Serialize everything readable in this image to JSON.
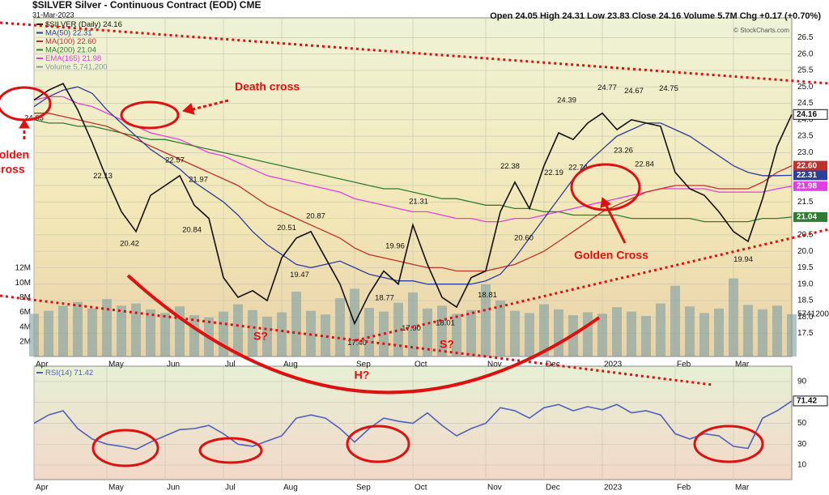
{
  "chart_data": [
    {
      "type": "line",
      "title": "$SILVER Silver - Continuous Contract (EOD) CME",
      "date": "31-Mar-2023",
      "header": "Open 24.05  High 24.31  Low 23.83  Close 24.16  Volume 5.7M  Chg +0.17 (+0.70%)",
      "credit": "© StockCharts.com",
      "categories": [
        "Apr",
        null,
        null,
        null,
        null,
        "May",
        null,
        null,
        null,
        "Jun",
        null,
        null,
        null,
        "Jul",
        null,
        null,
        null,
        "Aug",
        null,
        null,
        null,
        null,
        "Sep",
        null,
        null,
        null,
        "Oct",
        null,
        null,
        null,
        null,
        "Nov",
        null,
        null,
        null,
        "Dec",
        null,
        null,
        null,
        "2023",
        null,
        null,
        null,
        null,
        "Feb",
        null,
        null,
        null,
        "Mar",
        null,
        null,
        null,
        null
      ],
      "ylim": [
        16.8,
        27.1
      ],
      "yticks": [
        17.5,
        {
          "value": 18,
          "label": "18.0"
        },
        18.5,
        {
          "value": 19,
          "label": "19.0"
        },
        19.5,
        {
          "value": 20,
          "label": "20.0"
        },
        20.5,
        {
          "value": 21,
          "label": "21.0"
        },
        21.5,
        {
          "value": 22,
          "label": "22.0"
        },
        22.5,
        {
          "value": 23,
          "label": "23.0"
        },
        23.5,
        {
          "value": 24,
          "label": "24.0"
        },
        24.5,
        {
          "value": 25,
          "label": "25.0"
        },
        25.5,
        {
          "value": 26,
          "label": "26.0"
        },
        26.5
      ],
      "grid": true,
      "series": [
        {
          "name": "$SILVER (Daily)",
          "color": "#111111",
          "last_label": "24.16",
          "values": [
            24.6,
            24.9,
            25.1,
            24.3,
            23.3,
            22.2,
            21.2,
            20.6,
            21.7,
            22.0,
            22.3,
            21.4,
            21.0,
            19.2,
            18.6,
            18.8,
            18.5,
            19.8,
            20.4,
            20.6,
            19.8,
            19.0,
            17.8,
            18.7,
            19.4,
            19.0,
            20.8,
            19.6,
            18.6,
            18.3,
            19.2,
            19.4,
            21.2,
            22.1,
            21.3,
            22.6,
            23.6,
            23.4,
            23.9,
            24.2,
            23.7,
            24.0,
            23.9,
            23.8,
            22.4,
            21.9,
            21.7,
            21.2,
            20.6,
            20.3,
            21.6,
            23.2,
            24.16
          ]
        },
        {
          "name": "MA(50)",
          "color": "#2c3e9e",
          "last_label": "22.31",
          "values": [
            24.4,
            24.7,
            24.9,
            25.0,
            24.8,
            24.3,
            23.9,
            23.5,
            23.1,
            22.8,
            22.5,
            22.1,
            21.8,
            21.5,
            21.1,
            20.6,
            20.2,
            19.9,
            19.6,
            19.5,
            19.6,
            19.7,
            19.5,
            19.3,
            19.2,
            19.1,
            19.1,
            19.0,
            19.0,
            19.0,
            19.0,
            19.1,
            19.3,
            19.8,
            20.4,
            21.0,
            21.6,
            22.2,
            22.7,
            23.1,
            23.5,
            23.7,
            23.9,
            23.9,
            23.7,
            23.5,
            23.2,
            22.9,
            22.6,
            22.4,
            22.3,
            22.3,
            22.31
          ]
        },
        {
          "name": "MA(100)",
          "color": "#c0302a",
          "last_label": "22.60",
          "values": [
            24.2,
            24.2,
            24.1,
            24.0,
            23.9,
            23.8,
            23.6,
            23.4,
            23.2,
            23.0,
            22.8,
            22.6,
            22.4,
            22.2,
            22.0,
            21.7,
            21.4,
            21.2,
            21.0,
            20.8,
            20.6,
            20.4,
            20.1,
            19.9,
            19.8,
            19.7,
            19.6,
            19.5,
            19.5,
            19.4,
            19.4,
            19.4,
            19.5,
            19.6,
            19.8,
            20.0,
            20.3,
            20.6,
            20.9,
            21.2,
            21.4,
            21.6,
            21.8,
            21.9,
            22.0,
            22.0,
            22.0,
            21.9,
            21.9,
            21.9,
            22.1,
            22.4,
            22.6
          ]
        },
        {
          "name": "MA(200)",
          "color": "#2e7d32",
          "last_label": "21.04",
          "values": [
            24.0,
            23.9,
            23.9,
            23.8,
            23.8,
            23.7,
            23.6,
            23.5,
            23.4,
            23.4,
            23.3,
            23.2,
            23.1,
            23.0,
            22.9,
            22.8,
            22.7,
            22.6,
            22.5,
            22.4,
            22.3,
            22.2,
            22.1,
            22.0,
            21.9,
            21.9,
            21.8,
            21.7,
            21.6,
            21.6,
            21.5,
            21.4,
            21.4,
            21.3,
            21.3,
            21.2,
            21.2,
            21.1,
            21.1,
            21.1,
            21.1,
            21.0,
            21.0,
            21.0,
            21.0,
            21.0,
            20.9,
            20.9,
            20.9,
            20.9,
            21.0,
            21.0,
            21.04
          ]
        },
        {
          "name": "EMA(165)",
          "color": "#e040e0",
          "last_label": "21.98",
          "values": [
            24.6,
            24.7,
            24.7,
            24.5,
            24.4,
            24.2,
            24.0,
            23.8,
            23.6,
            23.5,
            23.4,
            23.2,
            23.0,
            22.9,
            22.7,
            22.5,
            22.3,
            22.2,
            22.1,
            22.0,
            21.9,
            21.8,
            21.6,
            21.5,
            21.4,
            21.3,
            21.2,
            21.2,
            21.1,
            21.0,
            21.0,
            20.9,
            20.9,
            21.0,
            21.0,
            21.1,
            21.2,
            21.3,
            21.4,
            21.5,
            21.6,
            21.7,
            21.8,
            21.9,
            21.9,
            21.9,
            21.9,
            21.8,
            21.8,
            21.8,
            21.8,
            21.9,
            21.98
          ]
        }
      ],
      "volume": {
        "name": "Volume",
        "color": "#7d9ea3",
        "last_label": "5,741,200",
        "tag_label": "5741200",
        "y2lim": [
          0,
          46000000
        ],
        "y2ticks": [
          {
            "value": 2000000,
            "label": "2M"
          },
          {
            "value": 4000000,
            "label": "4M"
          },
          {
            "value": 6000000,
            "label": "6M"
          },
          {
            "value": 8000000,
            "label": "8M"
          },
          {
            "value": 10000000,
            "label": "10M"
          },
          {
            "value": 12000000,
            "label": "12M"
          }
        ],
        "values": [
          5800000,
          6200000,
          6900000,
          7400000,
          6500000,
          7800000,
          6900000,
          7200000,
          6400000,
          5900000,
          6800000,
          5600000,
          5300000,
          6100000,
          7100000,
          6300000,
          5400000,
          6000000,
          8800000,
          6200000,
          5700000,
          7900000,
          9200000,
          6600000,
          6100000,
          7300000,
          8700000,
          6500000,
          6900000,
          5800000,
          6300000,
          9800000,
          7600000,
          6200000,
          5900000,
          7100000,
          6400000,
          5600000,
          6000000,
          5800000,
          6700000,
          6100000,
          5500000,
          7200000,
          9600000,
          6800000,
          5900000,
          6500000,
          10600000,
          7000000,
          6400000,
          6900000,
          5741200
        ]
      },
      "price_labels": [
        24.05,
        22.13,
        20.42,
        22.57,
        21.97,
        20.84,
        20.51,
        19.47,
        20.87,
        21.31,
        19.96,
        18.77,
        {
          "value": 17.9,
          "label": "17.90"
        },
        {
          "value": 17.4,
          "label": "17.40"
        },
        18.01,
        18.81,
        22.38,
        22.19,
        {
          "value": 20.6,
          "label": "20.60"
        },
        24.39,
        22.74,
        24.77,
        24.67,
        23.26,
        24.75,
        22.84,
        19.94
      ],
      "annotations": {
        "death_cross": "Death cross",
        "golden_cross_left": [
          "Golden",
          "cross"
        ],
        "golden_cross": "Golden Cross",
        "s1": "S?",
        "s2": "S?",
        "h": "H?"
      }
    },
    {
      "type": "line",
      "categories": [
        "Apr",
        null,
        null,
        null,
        null,
        "May",
        null,
        null,
        null,
        "Jun",
        null,
        null,
        null,
        "Jul",
        null,
        null,
        null,
        "Aug",
        null,
        null,
        null,
        null,
        "Sep",
        null,
        null,
        null,
        "Oct",
        null,
        null,
        null,
        null,
        "Nov",
        null,
        null,
        null,
        "Dec",
        null,
        null,
        null,
        "2023",
        null,
        null,
        null,
        null,
        "Feb",
        null,
        null,
        null,
        "Mar",
        null,
        null,
        null,
        null
      ],
      "ylim": [
        -3.9,
        104.7
      ],
      "yticks": [
        10,
        30,
        50,
        70,
        90
      ],
      "grid": true,
      "series": [
        {
          "name": "RSI(14)",
          "color": "#5060c0",
          "last_label": "71.42",
          "values": [
            50,
            58,
            62,
            45,
            35,
            30,
            28,
            25,
            32,
            38,
            44,
            45,
            48,
            40,
            30,
            28,
            33,
            38,
            55,
            58,
            55,
            45,
            32,
            45,
            55,
            52,
            50,
            60,
            48,
            38,
            45,
            50,
            65,
            62,
            55,
            65,
            68,
            62,
            66,
            63,
            68,
            60,
            62,
            58,
            40,
            35,
            40,
            38,
            28,
            26,
            55,
            62,
            71.42
          ]
        }
      ]
    }
  ]
}
